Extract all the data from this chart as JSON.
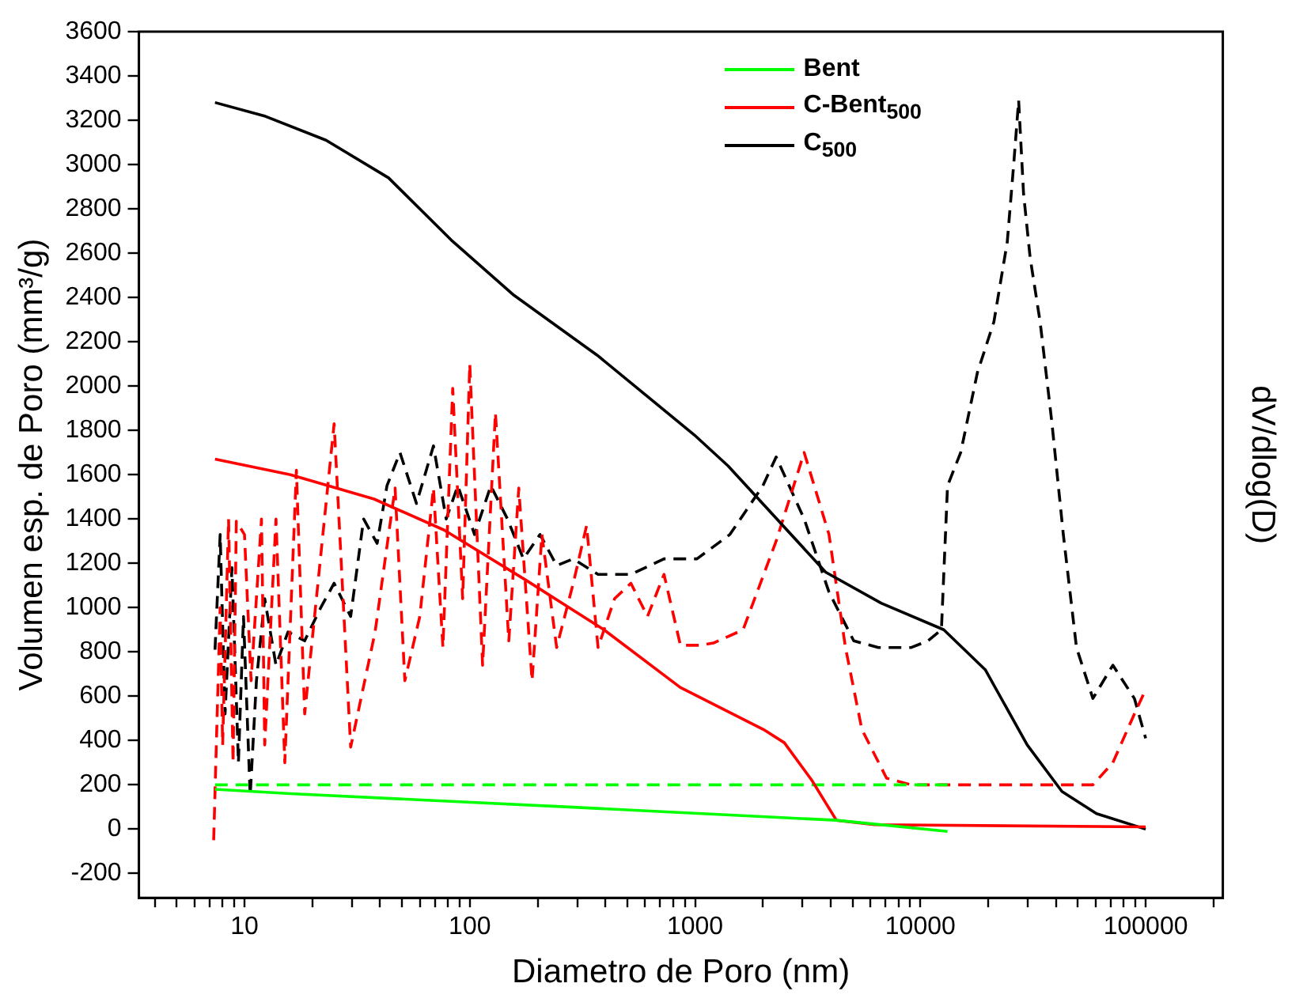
{
  "chart_data": {
    "type": "line",
    "xlabel": "Diametro de Poro (nm)",
    "ylabel": "Volumen esp. de Poro (mm³/g)",
    "y2label": "dV/dlog(D)",
    "log": "x",
    "xlim": [
      3.4,
      220000
    ],
    "xticks": [
      {
        "value": 4,
        "label": null
      },
      {
        "value": 5,
        "label": null
      },
      {
        "value": 6,
        "label": null
      },
      {
        "value": 7,
        "label": null
      },
      {
        "value": 8,
        "label": null
      },
      {
        "value": 9,
        "label": null
      },
      10,
      {
        "value": 20,
        "label": null
      },
      {
        "value": 30,
        "label": null
      },
      {
        "value": 40,
        "label": null
      },
      {
        "value": 50,
        "label": null
      },
      {
        "value": 60,
        "label": null
      },
      {
        "value": 70,
        "label": null
      },
      {
        "value": 80,
        "label": null
      },
      {
        "value": 90,
        "label": null
      },
      100,
      {
        "value": 200,
        "label": null
      },
      {
        "value": 300,
        "label": null
      },
      {
        "value": 400,
        "label": null
      },
      {
        "value": 500,
        "label": null
      },
      {
        "value": 600,
        "label": null
      },
      {
        "value": 700,
        "label": null
      },
      {
        "value": 800,
        "label": null
      },
      {
        "value": 900,
        "label": null
      },
      1000,
      {
        "value": 2000,
        "label": null
      },
      {
        "value": 3000,
        "label": null
      },
      {
        "value": 4000,
        "label": null
      },
      {
        "value": 5000,
        "label": null
      },
      {
        "value": 6000,
        "label": null
      },
      {
        "value": 7000,
        "label": null
      },
      {
        "value": 8000,
        "label": null
      },
      {
        "value": 9000,
        "label": null
      },
      10000,
      {
        "value": 20000,
        "label": null
      },
      {
        "value": 30000,
        "label": null
      },
      {
        "value": 40000,
        "label": null
      },
      {
        "value": 50000,
        "label": null
      },
      {
        "value": 60000,
        "label": null
      },
      {
        "value": 70000,
        "label": null
      },
      {
        "value": 80000,
        "label": null
      },
      {
        "value": 90000,
        "label": null
      },
      100000,
      {
        "value": 200000,
        "label": null
      }
    ],
    "ylim": [
      -310,
      3600
    ],
    "yticks": [
      -200,
      0,
      200,
      400,
      600,
      800,
      1000,
      1200,
      1400,
      1600,
      1800,
      2000,
      2200,
      2400,
      2600,
      2800,
      3000,
      3200,
      3400,
      3600
    ],
    "grid": false,
    "legend": "top",
    "series": [
      {
        "name": "Bent",
        "color": "#00ff00",
        "line_style": "solid",
        "x": [
          7.4,
          16,
          276,
          4240,
          13200
        ],
        "values": [
          180,
          160,
          100,
          40,
          -10
        ]
      },
      {
        "name": "C-Bent$_{500}$",
        "color": "#ff0000",
        "line_style": "solid",
        "x": [
          7.4,
          16,
          37.6,
          77,
          180,
          394,
          859,
          2010,
          2490,
          3300,
          4240,
          6270,
          100000
        ],
        "values": [
          1670,
          1600,
          1490,
          1350,
          1120,
          900,
          640,
          450,
          390,
          220,
          40,
          20,
          10
        ]
      },
      {
        "name": "C$_{500}$",
        "color": "#000000",
        "line_style": "solid",
        "x": [
          7.4,
          12.2,
          23,
          43.6,
          82.6,
          157,
          367,
          991,
          1400,
          3800,
          6700,
          12700,
          19400,
          29800,
          42500,
          60500,
          100000
        ],
        "values": [
          3280,
          3220,
          3110,
          2940,
          2660,
          2410,
          2140,
          1780,
          1640,
          1160,
          1020,
          900,
          720,
          380,
          170,
          70,
          0
        ]
      },
      {
        "color": "#00ff00",
        "line_style": "dashed",
        "x": [
          7.4,
          13200
        ],
        "values": [
          200,
          200
        ]
      },
      {
        "color": "#ff0000",
        "line_style": "dashed",
        "x": [
          7.3,
          7.8,
          8.0,
          8.5,
          8.9,
          9.2,
          10,
          10.7,
          11.9,
          12.3,
          13.8,
          15.1,
          17,
          18.5,
          25,
          29.6,
          38,
          46.6,
          51.5,
          60,
          69,
          76,
          84,
          93,
          100,
          114,
          130,
          149,
          165,
          189,
          209,
          243,
          288,
          330,
          371,
          439,
          519,
          615,
          728,
          861,
          1054,
          1206,
          1633,
          2290,
          3050,
          3930,
          4650,
          5500,
          7080,
          9120,
          13200,
          58300,
          71500,
          89100,
          100000
        ],
        "values": [
          -50,
          1000,
          380,
          1400,
          300,
          1390,
          1330,
          670,
          1400,
          380,
          1400,
          300,
          1620,
          520,
          1830,
          370,
          890,
          1540,
          670,
          960,
          1540,
          820,
          1990,
          1040,
          2100,
          740,
          1880,
          850,
          1540,
          670,
          1330,
          820,
          1110,
          1370,
          820,
          1040,
          1110,
          960,
          1150,
          830,
          830,
          840,
          900,
          1300,
          1700,
          1330,
          820,
          450,
          230,
          200,
          200,
          200,
          300,
          520,
          630
        ]
      },
      {
        "color": "#000000",
        "line_style": "dashed",
        "x": [
          7.4,
          7.8,
          8.2,
          8.8,
          9.4,
          9.9,
          10.6,
          11.3,
          12.3,
          13.8,
          15.6,
          18.5,
          21.8,
          25,
          29.6,
          33.8,
          38.8,
          42.9,
          49,
          58,
          69,
          78.6,
          88.5,
          105,
          124,
          147,
          173,
          205,
          243,
          288,
          371,
          519,
          728,
          1019,
          1427,
          2000,
          2290,
          3050,
          3930,
          5060,
          6510,
          9120,
          10800,
          12400,
          13200,
          15100,
          17900,
          21200,
          24300,
          26000,
          27300,
          28700,
          30700,
          34000,
          38300,
          43100,
          49300,
          58300,
          71500,
          89100,
          100000
        ],
        "values": [
          810,
          1330,
          520,
          1180,
          300,
          960,
          150,
          670,
          1040,
          740,
          890,
          850,
          1000,
          1110,
          960,
          1400,
          1290,
          1550,
          1700,
          1470,
          1730,
          1400,
          1550,
          1330,
          1550,
          1400,
          1220,
          1330,
          1190,
          1220,
          1150,
          1150,
          1220,
          1220,
          1330,
          1550,
          1680,
          1400,
          1070,
          850,
          820,
          820,
          850,
          900,
          1550,
          1700,
          2060,
          2290,
          2650,
          3010,
          3290,
          2870,
          2580,
          2290,
          1840,
          1330,
          820,
          590,
          740,
          590,
          410
        ]
      }
    ]
  }
}
